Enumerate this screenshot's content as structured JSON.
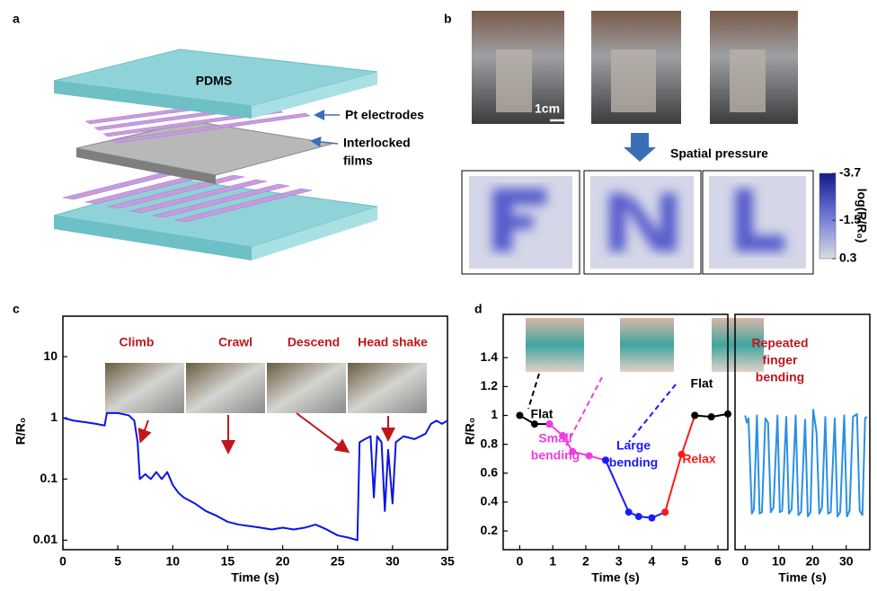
{
  "panel_a": {
    "label": "a",
    "top_layer": "PDMS",
    "callouts": [
      [
        "Pt electrodes"
      ],
      [
        "Interlocked",
        "films"
      ]
    ]
  },
  "panel_b": {
    "label": "b",
    "scale_bar": "1cm",
    "arrow_label": "Spatial pressure",
    "colorbar": {
      "label": "log(R/R₀)",
      "lim": [
        0.3,
        -3.7
      ],
      "ticks": [
        -3.7,
        -1.5,
        0.3
      ]
    }
  },
  "chart_data": [
    {
      "type": "line",
      "panel_label": "c",
      "x_label": "Time (s)",
      "y_label": "R/R₀",
      "log_y": true,
      "xlim": [
        0,
        35
      ],
      "ylim": [
        0.007,
        46
      ],
      "xticks": [
        0,
        5,
        10,
        15,
        20,
        25,
        30,
        35
      ],
      "yticks": [
        0.01,
        0.1,
        1,
        10
      ],
      "series": [
        {
          "color": "#0a14e6",
          "x": [
            0,
            1,
            2,
            3,
            3.8,
            4,
            5,
            6,
            6.5,
            6.8,
            7,
            7.5,
            8,
            8.5,
            9,
            9.5,
            10,
            10.5,
            11,
            12,
            13,
            14,
            15,
            16,
            17,
            18,
            19,
            20,
            21,
            22,
            23,
            24,
            25,
            26,
            26.8,
            27,
            27.5,
            28,
            28.3,
            28.6,
            29,
            29.3,
            29.6,
            30,
            30.3,
            31,
            32,
            33,
            33.5,
            34,
            34.5,
            35
          ],
          "values": [
            1.0,
            0.9,
            0.85,
            0.8,
            0.75,
            1.2,
            1.2,
            1.1,
            0.9,
            0.4,
            0.1,
            0.12,
            0.1,
            0.13,
            0.1,
            0.13,
            0.08,
            0.06,
            0.05,
            0.04,
            0.03,
            0.025,
            0.02,
            0.018,
            0.017,
            0.016,
            0.015,
            0.016,
            0.015,
            0.016,
            0.018,
            0.015,
            0.012,
            0.011,
            0.01,
            0.4,
            0.45,
            0.5,
            0.05,
            0.5,
            0.4,
            0.03,
            0.3,
            0.04,
            0.4,
            0.5,
            0.45,
            0.55,
            0.8,
            0.9,
            0.8,
            0.9
          ]
        }
      ],
      "annotations": [
        {
          "lines": [
            "Climb"
          ],
          "color": "#c0161c"
        },
        {
          "lines": [
            "Crawl"
          ],
          "color": "#c0161c"
        },
        {
          "lines": [
            "Descend"
          ],
          "color": "#c0161c"
        },
        {
          "lines": [
            "Head shake"
          ],
          "color": "#c0161c"
        }
      ]
    },
    {
      "type": "line",
      "panel_label": "d",
      "x_label": "Time (s)",
      "y_label": "R/R₀",
      "markers": true,
      "xlim": [
        -0.5,
        6.3
      ],
      "ylim": [
        0.07,
        1.7
      ],
      "xticks": [
        0,
        1,
        2,
        3,
        4,
        5,
        6
      ],
      "yticks": [
        0.2,
        0.4,
        0.6,
        0.8,
        1.0,
        1.2,
        1.4
      ],
      "series": [
        {
          "color": "#000000",
          "x": [
            0,
            0.45,
            0.9
          ],
          "values": [
            1.0,
            0.94,
            0.94
          ]
        },
        {
          "color": "#f03ce0",
          "x": [
            0.9,
            1.3,
            1.6,
            2.1,
            2.6
          ],
          "values": [
            0.94,
            0.86,
            0.75,
            0.72,
            0.69
          ]
        },
        {
          "color": "#1a1aff",
          "x": [
            2.6,
            3.3,
            3.6,
            4.0,
            4.4
          ],
          "values": [
            0.69,
            0.33,
            0.3,
            0.29,
            0.33
          ]
        },
        {
          "color": "#ff1a1a",
          "x": [
            4.4,
            4.9,
            5.3
          ],
          "values": [
            0.33,
            0.73,
            1.0
          ]
        },
        {
          "color": "#000000",
          "x": [
            5.3,
            5.8,
            6.3
          ],
          "values": [
            1.0,
            0.99,
            1.01
          ]
        }
      ],
      "annotations": [
        {
          "lines": [
            "Flat"
          ],
          "color": "#000000"
        },
        {
          "lines": [
            "Small",
            "bending"
          ],
          "color": "#f03ce0"
        },
        {
          "lines": [
            "Large",
            "bending"
          ],
          "color": "#1a1aff"
        },
        {
          "lines": [
            "Relax"
          ],
          "color": "#ff1a1a"
        },
        {
          "lines": [
            "Flat"
          ],
          "color": "#000000"
        }
      ]
    },
    {
      "type": "line",
      "x_label": "Time (s)",
      "xlim": [
        -3,
        37
      ],
      "ylim": [
        0.07,
        1.7
      ],
      "xticks": [
        0,
        10,
        20,
        30
      ],
      "series": [
        {
          "color": "#2b8fe6",
          "x": [
            0,
            0.5,
            1,
            2,
            2.6,
            3.5,
            4.3,
            5,
            6,
            6.8,
            7.6,
            8.4,
            9.6,
            10.3,
            11,
            12.2,
            13,
            13.8,
            15,
            15.8,
            16.6,
            17.8,
            18.6,
            19.4,
            20.2,
            21.2,
            22,
            22.8,
            23.8,
            24.6,
            25.4,
            26.6,
            27.4,
            28.2,
            29.4,
            30.2,
            31,
            32,
            33.2,
            34,
            34.8,
            35.6,
            36.2
          ],
          "values": [
            1.0,
            0.95,
            0.98,
            0.32,
            0.35,
            1.0,
            0.32,
            0.33,
            0.98,
            0.95,
            0.33,
            0.36,
            1.0,
            0.33,
            0.34,
            0.99,
            0.32,
            0.35,
            1.0,
            0.31,
            0.33,
            0.97,
            0.3,
            0.33,
            1.04,
            0.88,
            0.32,
            0.36,
            0.99,
            0.32,
            0.33,
            0.98,
            0.3,
            0.33,
            1.0,
            0.3,
            0.34,
            0.99,
            1.01,
            0.34,
            0.31,
            0.98,
            0.99
          ]
        }
      ],
      "annotations": [
        {
          "lines": [
            "Repeated",
            "finger",
            "bending"
          ],
          "color": "#c0161c"
        }
      ]
    }
  ]
}
